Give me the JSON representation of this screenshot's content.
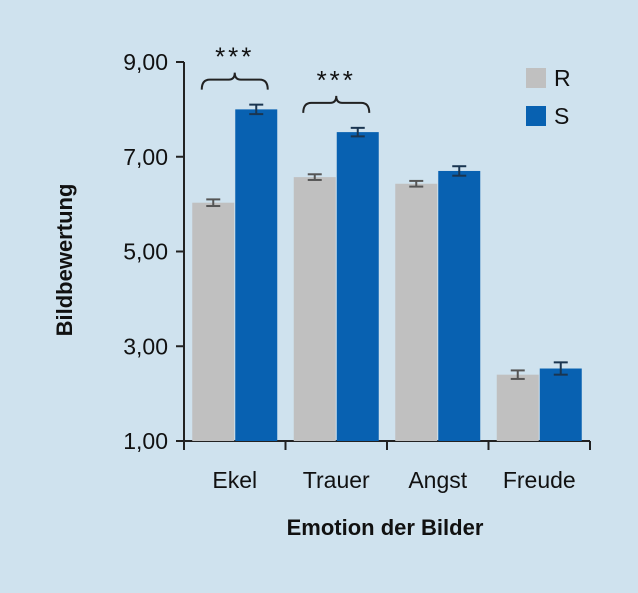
{
  "chart_data": {
    "type": "bar",
    "xlabel": "Emotion der Bilder",
    "ylabel": "Bildbewertung",
    "categories": [
      "Ekel",
      "Trauer",
      "Angst",
      "Freude"
    ],
    "ylim": [
      1,
      9
    ],
    "yticks": [
      1,
      3,
      5,
      7,
      9
    ],
    "ytick_labels": [
      "1,00",
      "3,00",
      "5,00",
      "7,00",
      "9,00"
    ],
    "series": [
      {
        "name": "R",
        "color": "#c0c0c0",
        "errcolor": "#555555",
        "values": [
          6.03,
          6.57,
          6.43,
          2.4
        ],
        "errors": [
          0.07,
          0.06,
          0.06,
          0.09
        ]
      },
      {
        "name": "S",
        "color": "#0861b1",
        "errcolor": "#1a3550",
        "values": [
          8.0,
          7.52,
          6.7,
          2.53
        ],
        "errors": [
          0.1,
          0.09,
          0.1,
          0.13
        ]
      }
    ],
    "legend_position": "top-right",
    "significance": [
      {
        "category_index": 0,
        "label": "***"
      },
      {
        "category_index": 1,
        "label": "***"
      }
    ],
    "grid": false
  }
}
